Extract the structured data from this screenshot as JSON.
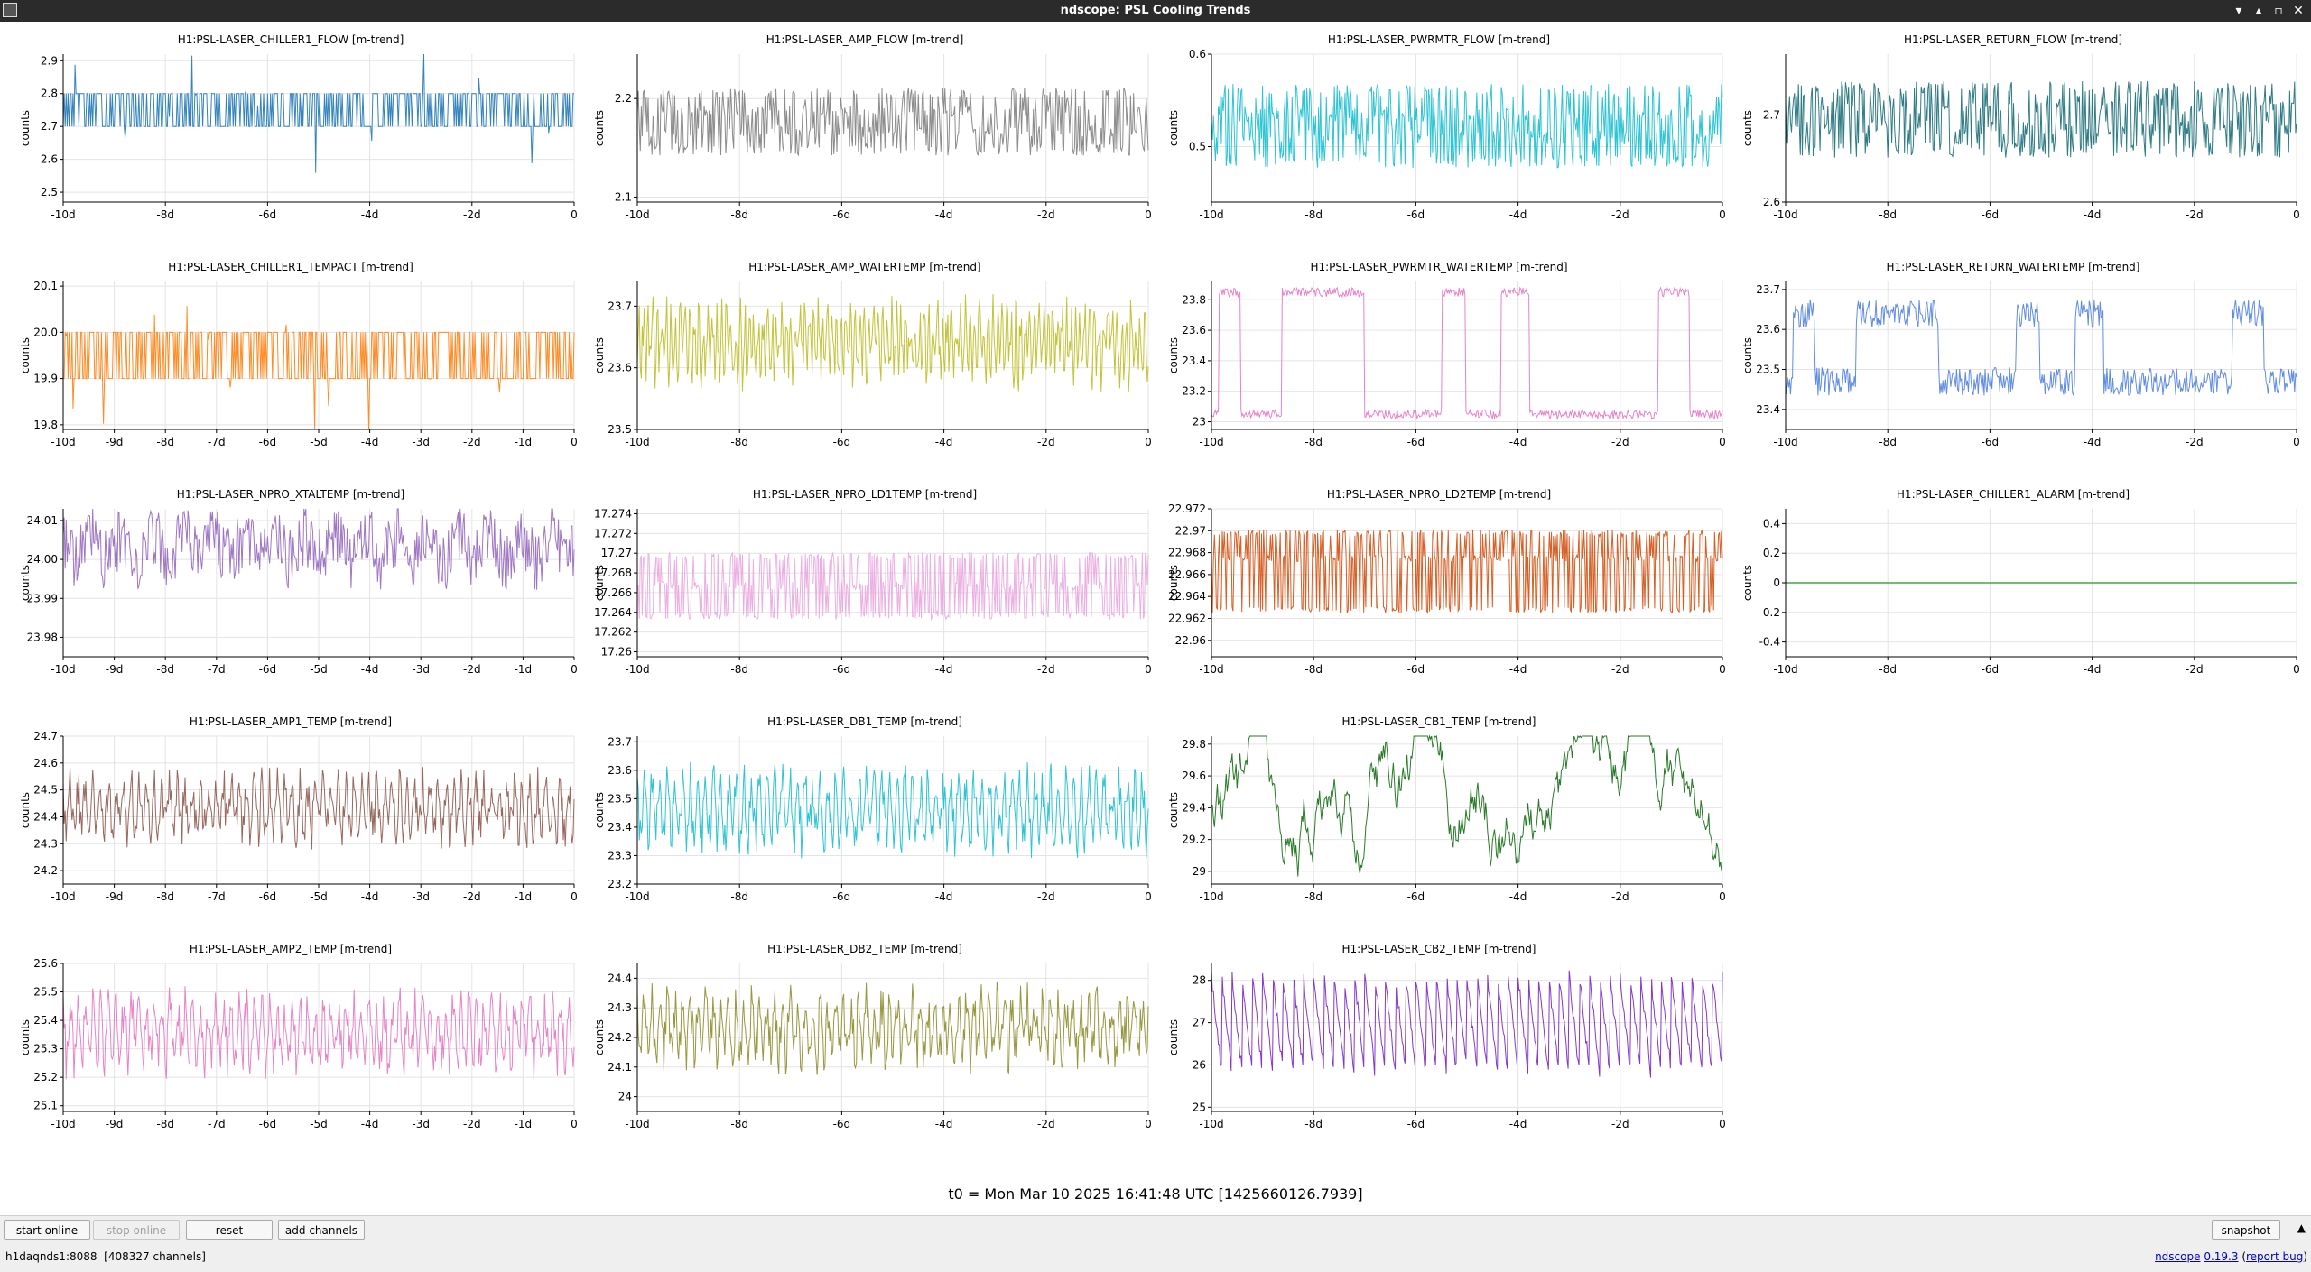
{
  "window": {
    "title": "ndscope: PSL Cooling Trends",
    "controls": {
      "minimize": "▾",
      "restore": "▴",
      "maximize": "▫",
      "close": "✕"
    }
  },
  "colors": {
    "plot_bg": "#ffffff",
    "grid": "#e4e4e4",
    "axis": "#000000"
  },
  "grid_layout": {
    "rows": 5,
    "cols": 4
  },
  "chart_data": [
    {
      "type": "line",
      "row": 0,
      "col": 0,
      "title": "H1:PSL-LASER_CHILLER1_FLOW [m-trend]",
      "ylabel": "counts",
      "color": "#1f77b4",
      "yticks": [
        "2.5",
        "2.6",
        "2.7",
        "2.8",
        "2.9"
      ],
      "ylim": [
        2.47,
        2.92
      ],
      "xticks": [
        "-10d",
        "-8d",
        "-6d",
        "-4d",
        "-2d",
        "0"
      ],
      "xlim": [
        -10,
        0
      ],
      "pattern": {
        "kind": "band",
        "base": 2.75,
        "amp": 0.05,
        "spikes": 0.15
      }
    },
    {
      "type": "line",
      "row": 0,
      "col": 1,
      "title": "H1:PSL-LASER_AMP_FLOW [m-trend]",
      "ylabel": "counts",
      "color": "#808080",
      "yticks": [
        "2.1",
        "2.2"
      ],
      "ylim": [
        2.095,
        2.245
      ],
      "xticks": [
        "-10d",
        "-8d",
        "-6d",
        "-4d",
        "-2d",
        "0"
      ],
      "xlim": [
        -10,
        0
      ],
      "pattern": {
        "kind": "bands",
        "base": 2.17,
        "levels": [
          2.205,
          2.187,
          2.167,
          2.148
        ],
        "noise": 0.006
      }
    },
    {
      "type": "line",
      "row": 0,
      "col": 2,
      "title": "H1:PSL-LASER_PWRMTR_FLOW [m-trend]",
      "ylabel": "counts",
      "color": "#17becf",
      "yticks": [
        "0.5",
        "0.6"
      ],
      "ylim": [
        0.44,
        0.6
      ],
      "xticks": [
        "-10d",
        "-8d",
        "-6d",
        "-4d",
        "-2d",
        "0"
      ],
      "xlim": [
        -10,
        0
      ],
      "pattern": {
        "kind": "bands",
        "base": 0.52,
        "levels": [
          0.56,
          0.535,
          0.51,
          0.485
        ],
        "noise": 0.008
      }
    },
    {
      "type": "line",
      "row": 0,
      "col": 3,
      "title": "H1:PSL-LASER_RETURN_FLOW [m-trend]",
      "ylabel": "counts",
      "color": "#1a6e78",
      "yticks": [
        "2.6",
        "2.7"
      ],
      "ylim": [
        2.6,
        2.77
      ],
      "xticks": [
        "-10d",
        "-8d",
        "-6d",
        "-4d",
        "-2d",
        "0"
      ],
      "xlim": [
        -10,
        0
      ],
      "pattern": {
        "kind": "bands",
        "base": 2.69,
        "levels": [
          2.73,
          2.71,
          2.685,
          2.66
        ],
        "noise": 0.009
      }
    },
    {
      "type": "line",
      "row": 1,
      "col": 0,
      "title": "H1:PSL-LASER_CHILLER1_TEMPACT [m-trend]",
      "ylabel": "counts",
      "color": "#ff7f0e",
      "yticks": [
        "19.8",
        "19.9",
        "20.0",
        "20.1"
      ],
      "ylim": [
        19.79,
        20.11
      ],
      "xticks": [
        "-10d",
        "-9d",
        "-8d",
        "-7d",
        "-6d",
        "-5d",
        "-4d",
        "-3d",
        "-2d",
        "-1d",
        "0"
      ],
      "xlim": [
        -10,
        0
      ],
      "pattern": {
        "kind": "band",
        "base": 19.95,
        "amp": 0.05,
        "spikes": 0.15
      }
    },
    {
      "type": "line",
      "row": 1,
      "col": 1,
      "title": "H1:PSL-LASER_AMP_WATERTEMP [m-trend]",
      "ylabel": "counts",
      "color": "#bcbd22",
      "yticks": [
        "23.5",
        "23.6",
        "23.7"
      ],
      "ylim": [
        23.5,
        23.74
      ],
      "xticks": [
        "-10d",
        "-8d",
        "-6d",
        "-4d",
        "-2d",
        "0"
      ],
      "xlim": [
        -10,
        0
      ],
      "pattern": {
        "kind": "osc",
        "base": 23.64,
        "amp": 0.04,
        "period": 0.09,
        "noise": 0.02
      }
    },
    {
      "type": "line",
      "row": 1,
      "col": 2,
      "title": "H1:PSL-LASER_PWRMTR_WATERTEMP [m-trend]",
      "ylabel": "counts",
      "color": "#e377c2",
      "yticks": [
        "23",
        "23.2",
        "23.4",
        "23.6",
        "23.8"
      ],
      "ylim": [
        22.95,
        23.92
      ],
      "xticks": [
        "-10d",
        "-8d",
        "-6d",
        "-4d",
        "-2d",
        "0"
      ],
      "xlim": [
        -10,
        0
      ],
      "pattern": {
        "kind": "square",
        "low": 23.05,
        "high": 23.85,
        "noise": 0.03
      }
    },
    {
      "type": "line",
      "row": 1,
      "col": 3,
      "title": "H1:PSL-LASER_RETURN_WATERTEMP [m-trend]",
      "ylabel": "counts",
      "color": "#4f7fe0",
      "yticks": [
        "23.4",
        "23.5",
        "23.6",
        "23.7"
      ],
      "ylim": [
        23.35,
        23.72
      ],
      "xticks": [
        "-10d",
        "-8d",
        "-6d",
        "-4d",
        "-2d",
        "0"
      ],
      "xlim": [
        -10,
        0
      ],
      "pattern": {
        "kind": "square",
        "low": 23.47,
        "high": 23.64,
        "noise": 0.035
      }
    },
    {
      "type": "line",
      "row": 2,
      "col": 0,
      "title": "H1:PSL-LASER_NPRO_XTALTEMP [m-trend]",
      "ylabel": "counts",
      "color": "#9467bd",
      "yticks": [
        "23.98",
        "23.99",
        "24.00",
        "24.01"
      ],
      "ylim": [
        23.975,
        24.013
      ],
      "xticks": [
        "-10d",
        "-9d",
        "-8d",
        "-7d",
        "-6d",
        "-5d",
        "-4d",
        "-3d",
        "-2d",
        "-1d",
        "0"
      ],
      "xlim": [
        -10,
        0
      ],
      "pattern": {
        "kind": "osc",
        "base": 24.003,
        "amp": 0.003,
        "period": 0.6,
        "noise": 0.004
      }
    },
    {
      "type": "line",
      "row": 2,
      "col": 1,
      "title": "H1:PSL-LASER_NPRO_LD1TEMP [m-trend]",
      "ylabel": "counts",
      "color": "#e9a6df",
      "yticks": [
        "17.26",
        "17.262",
        "17.264",
        "17.266",
        "17.268",
        "17.27",
        "17.272",
        "17.274"
      ],
      "ylim": [
        17.2595,
        17.2745
      ],
      "xticks": [
        "-10d",
        "-8d",
        "-6d",
        "-4d",
        "-2d",
        "0"
      ],
      "xlim": [
        -10,
        0
      ],
      "pattern": {
        "kind": "bands",
        "base": 17.2667,
        "levels": [
          17.2697,
          17.2667,
          17.2637
        ],
        "noise": 0.0004
      }
    },
    {
      "type": "line",
      "row": 2,
      "col": 2,
      "title": "H1:PSL-LASER_NPRO_LD2TEMP [m-trend]",
      "ylabel": "counts",
      "color": "#d14f0f",
      "yticks": [
        "22.96",
        "22.962",
        "22.964",
        "22.966",
        "22.968",
        "22.97",
        "22.972"
      ],
      "ylim": [
        22.9585,
        22.972
      ],
      "xticks": [
        "-10d",
        "-8d",
        "-6d",
        "-4d",
        "-2d",
        "0"
      ],
      "xlim": [
        -10,
        0
      ],
      "pattern": {
        "kind": "bands",
        "base": 22.9675,
        "levels": [
          22.9698,
          22.9675,
          22.9628
        ],
        "noise": 0.0003
      }
    },
    {
      "type": "line",
      "row": 2,
      "col": 3,
      "title": "H1:PSL-LASER_CHILLER1_ALARM [m-trend]",
      "ylabel": "counts",
      "color": "#2ca02c",
      "yticks": [
        "-0.4",
        "-0.2",
        "0",
        "0.2",
        "0.4"
      ],
      "ylim": [
        -0.5,
        0.5
      ],
      "xticks": [
        "-10d",
        "-8d",
        "-6d",
        "-4d",
        "-2d",
        "0"
      ],
      "xlim": [
        -10,
        0
      ],
      "pattern": {
        "kind": "flat",
        "base": 0
      }
    },
    {
      "type": "line",
      "row": 3,
      "col": 0,
      "title": "H1:PSL-LASER_AMP1_TEMP [m-trend]",
      "ylabel": "counts",
      "color": "#8c564b",
      "yticks": [
        "24.2",
        "24.3",
        "24.4",
        "24.5",
        "24.6",
        "24.7"
      ],
      "ylim": [
        24.15,
        24.7
      ],
      "xticks": [
        "-10d",
        "-9d",
        "-8d",
        "-7d",
        "-6d",
        "-5d",
        "-4d",
        "-3d",
        "-2d",
        "-1d",
        "0"
      ],
      "xlim": [
        -10,
        0
      ],
      "pattern": {
        "kind": "osc",
        "base": 24.43,
        "amp": 0.08,
        "period": 0.15,
        "noise": 0.04
      }
    },
    {
      "type": "line",
      "row": 3,
      "col": 1,
      "title": "H1:PSL-LASER_DB1_TEMP [m-trend]",
      "ylabel": "counts",
      "color": "#17becf",
      "yticks": [
        "23.2",
        "23.3",
        "23.4",
        "23.5",
        "23.6",
        "23.7"
      ],
      "ylim": [
        23.2,
        23.72
      ],
      "xticks": [
        "-10d",
        "-8d",
        "-6d",
        "-4d",
        "-2d",
        "0"
      ],
      "xlim": [
        -10,
        0
      ],
      "pattern": {
        "kind": "osc",
        "base": 23.46,
        "amp": 0.09,
        "period": 0.15,
        "noise": 0.04
      }
    },
    {
      "type": "line",
      "row": 3,
      "col": 2,
      "title": "H1:PSL-LASER_CB1_TEMP [m-trend]",
      "ylabel": "counts",
      "color": "#116b11",
      "yticks": [
        "29",
        "29.2",
        "29.4",
        "29.6",
        "29.8"
      ],
      "ylim": [
        28.92,
        29.85
      ],
      "xticks": [
        "-10d",
        "-8d",
        "-6d",
        "-4d",
        "-2d",
        "0"
      ],
      "xlim": [
        -10,
        0
      ],
      "pattern": {
        "kind": "walk",
        "base": 29.35,
        "amp": 0.25,
        "noise": 0.02
      }
    },
    {
      "type": "line",
      "row": 4,
      "col": 0,
      "title": "H1:PSL-LASER_AMP2_TEMP [m-trend]",
      "ylabel": "counts",
      "color": "#e377c2",
      "yticks": [
        "25.1",
        "25.2",
        "25.3",
        "25.4",
        "25.5",
        "25.6"
      ],
      "ylim": [
        25.08,
        25.6
      ],
      "xticks": [
        "-10d",
        "-9d",
        "-8d",
        "-7d",
        "-6d",
        "-5d",
        "-4d",
        "-3d",
        "-2d",
        "-1d",
        "0"
      ],
      "xlim": [
        -10,
        0
      ],
      "pattern": {
        "kind": "osc",
        "base": 25.36,
        "amp": 0.09,
        "period": 0.15,
        "noise": 0.04
      }
    },
    {
      "type": "line",
      "row": 4,
      "col": 1,
      "title": "H1:PSL-LASER_DB2_TEMP [m-trend]",
      "ylabel": "counts",
      "color": "#8c8c2a",
      "yticks": [
        "24",
        "24.1",
        "24.2",
        "24.3",
        "24.4"
      ],
      "ylim": [
        23.95,
        24.45
      ],
      "xticks": [
        "-10d",
        "-8d",
        "-6d",
        "-4d",
        "-2d",
        "0"
      ],
      "xlim": [
        -10,
        0
      ],
      "pattern": {
        "kind": "osc",
        "base": 24.23,
        "amp": 0.08,
        "period": 0.15,
        "noise": 0.04
      }
    },
    {
      "type": "line",
      "row": 4,
      "col": 2,
      "title": "H1:PSL-LASER_CB2_TEMP [m-trend]",
      "ylabel": "counts",
      "color": "#7722c2",
      "yticks": [
        "25",
        "26",
        "27",
        "28"
      ],
      "ylim": [
        24.9,
        28.4
      ],
      "xticks": [
        "-10d",
        "-8d",
        "-6d",
        "-4d",
        "-2d",
        "0"
      ],
      "xlim": [
        -10,
        0
      ],
      "pattern": {
        "kind": "saw",
        "low": 25.8,
        "high": 28.1,
        "period": 0.2,
        "noise": 0.15
      }
    }
  ],
  "t0_label": "t0 = Mon Mar 10 2025 16:41:48 UTC [1425660126.7939]",
  "buttons": {
    "start_online": "start online",
    "stop_online": "stop online",
    "reset": "reset",
    "add_channels": "add channels",
    "snapshot": "snapshot"
  },
  "status": {
    "server": "h1daqnds1:8088",
    "channels": "[408327 channels]",
    "app_name": "ndscope",
    "version": "0.19.3",
    "report_bug": "report bug"
  }
}
